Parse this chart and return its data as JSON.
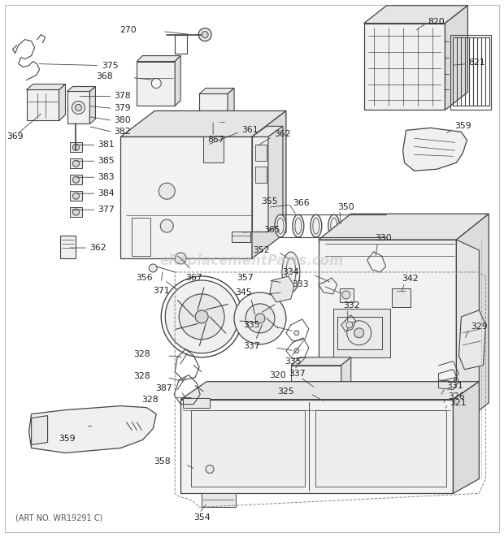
{
  "art_no": "(ART NO. WR19291 C)",
  "watermark": "eReplacementParts.com",
  "bg_color": "#ffffff",
  "border_color": "#bbbbbb",
  "line_color": "#444444",
  "text_color": "#222222",
  "watermark_color": "#bbbbbb",
  "fig_width": 6.2,
  "fig_height": 6.61,
  "dpi": 100
}
